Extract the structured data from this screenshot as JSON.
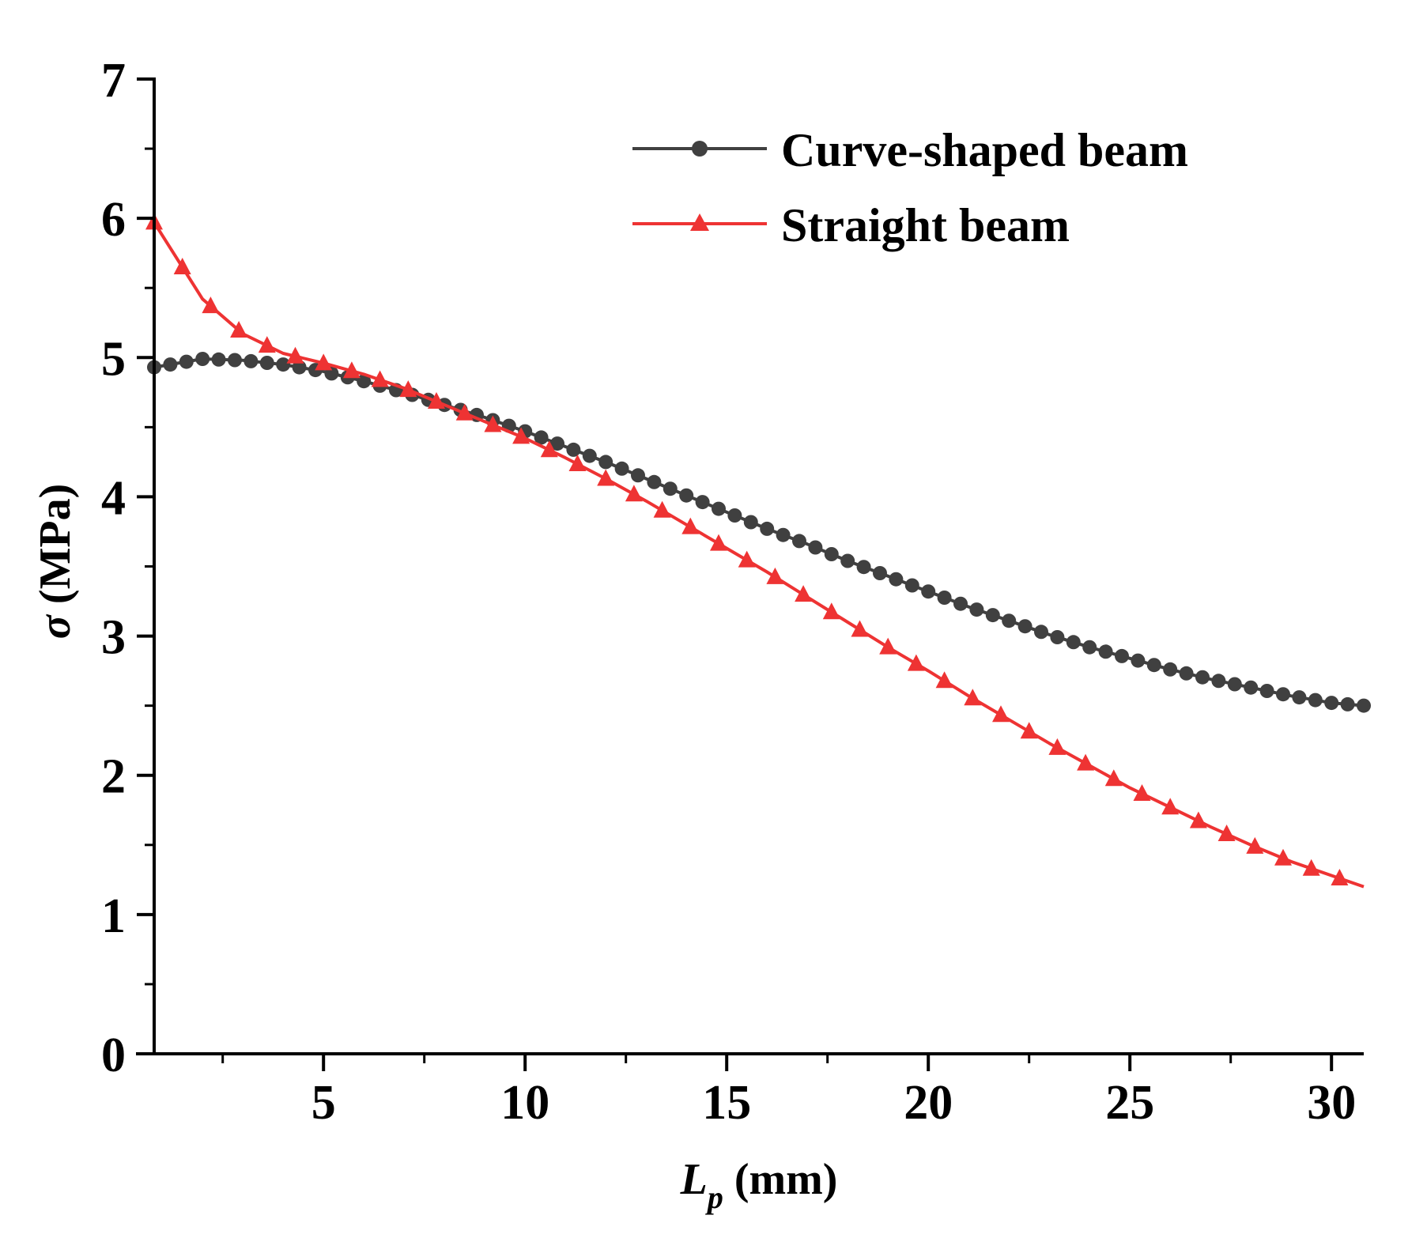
{
  "chart_data": {
    "type": "line",
    "title": "",
    "xlabel": {
      "symbol": "L",
      "subscript": "p",
      "unit": " (mm)"
    },
    "ylabel": {
      "symbol": "σ",
      "unit": " (MPa)"
    },
    "xlim": [
      0.8,
      30.8
    ],
    "ylim": [
      0,
      7
    ],
    "xticks": [
      5,
      10,
      15,
      20,
      25,
      30
    ],
    "xtick_labels": [
      "5",
      "10",
      "15",
      "20",
      "25",
      "30"
    ],
    "yticks": [
      0,
      1,
      2,
      3,
      4,
      5,
      6,
      7
    ],
    "ytick_labels": [
      "0",
      "1",
      "2",
      "3",
      "4",
      "5",
      "6",
      "7"
    ],
    "grid": false,
    "legend_position": "top-right",
    "series": [
      {
        "name": "Curve-shaped beam",
        "color": "#404040",
        "marker": "circle",
        "x": [
          0.8,
          2,
          3,
          4,
          5,
          6,
          7,
          8,
          9,
          10,
          11,
          12,
          13,
          14,
          15,
          16,
          17,
          18,
          19,
          20,
          21,
          22,
          23,
          24,
          25,
          26,
          27,
          28,
          29,
          30,
          30.8
        ],
        "values": [
          4.93,
          4.99,
          4.98,
          4.95,
          4.9,
          4.83,
          4.75,
          4.66,
          4.57,
          4.47,
          4.36,
          4.25,
          4.13,
          4.01,
          3.89,
          3.77,
          3.66,
          3.54,
          3.43,
          3.32,
          3.21,
          3.11,
          3.01,
          2.92,
          2.84,
          2.76,
          2.69,
          2.63,
          2.57,
          2.52,
          2.5
        ]
      },
      {
        "name": "Straight beam",
        "color": "#ee3333",
        "marker": "triangle",
        "x": [
          0.8,
          2,
          3,
          4,
          5,
          6,
          7,
          8,
          9,
          10,
          11,
          12,
          13,
          14,
          15,
          16,
          17,
          18,
          19,
          20,
          21,
          22,
          23,
          24,
          25,
          26,
          27,
          28,
          29,
          30,
          30.8
        ],
        "values": [
          5.97,
          5.42,
          5.17,
          5.03,
          4.96,
          4.88,
          4.78,
          4.66,
          4.54,
          4.42,
          4.28,
          4.13,
          3.97,
          3.8,
          3.63,
          3.46,
          3.28,
          3.1,
          2.92,
          2.75,
          2.57,
          2.4,
          2.23,
          2.07,
          1.91,
          1.77,
          1.63,
          1.5,
          1.38,
          1.28,
          1.2
        ]
      }
    ]
  }
}
